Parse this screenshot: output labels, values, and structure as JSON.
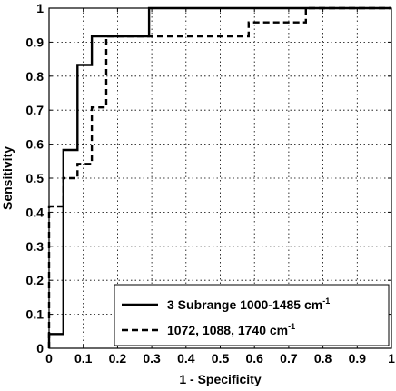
{
  "chart_data": {
    "type": "line",
    "title": "",
    "xlabel": "1 - Specificity",
    "ylabel": "Sensitivity",
    "xlim": [
      0,
      1
    ],
    "ylim": [
      0,
      1
    ],
    "xticks": [
      "0",
      "0.1",
      "0.2",
      "0.3",
      "0.4",
      "0.5",
      "0.6",
      "0.7",
      "0.8",
      "0.9",
      "1"
    ],
    "yticks": [
      "0",
      "0.1",
      "0.2",
      "0.3",
      "0.4",
      "0.5",
      "0.6",
      "0.7",
      "0.8",
      "0.9",
      "1"
    ],
    "grid": true,
    "legend_position": "bottom-right",
    "series": [
      {
        "name": "3 Subrange 1000-1485 cm",
        "name_superscript": "-1",
        "style": "solid",
        "color": "#000000",
        "points": [
          [
            0,
            0
          ],
          [
            0,
            0.042
          ],
          [
            0.042,
            0.042
          ],
          [
            0.042,
            0.583
          ],
          [
            0.083,
            0.583
          ],
          [
            0.083,
            0.833
          ],
          [
            0.125,
            0.833
          ],
          [
            0.125,
            0.917
          ],
          [
            0.292,
            0.917
          ],
          [
            0.292,
            1.0
          ],
          [
            1.0,
            1.0
          ]
        ]
      },
      {
        "name": "1072, 1088, 1740 cm",
        "name_superscript": "-1",
        "style": "dashed",
        "color": "#000000",
        "points": [
          [
            0,
            0
          ],
          [
            0,
            0.417
          ],
          [
            0.042,
            0.417
          ],
          [
            0.042,
            0.5
          ],
          [
            0.083,
            0.5
          ],
          [
            0.083,
            0.542
          ],
          [
            0.125,
            0.542
          ],
          [
            0.125,
            0.708
          ],
          [
            0.167,
            0.708
          ],
          [
            0.167,
            0.917
          ],
          [
            0.583,
            0.917
          ],
          [
            0.583,
            0.958
          ],
          [
            0.75,
            0.958
          ],
          [
            0.75,
            1.0
          ],
          [
            1.0,
            1.0
          ]
        ]
      }
    ]
  }
}
